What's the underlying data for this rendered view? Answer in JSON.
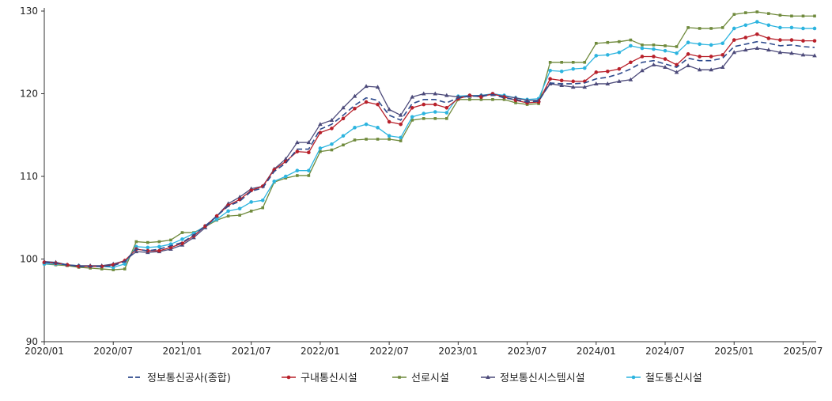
{
  "chart_data": {
    "type": "line",
    "title": "",
    "xlabel": "",
    "ylabel": "",
    "ylim": [
      90,
      130
    ],
    "y_ticks": [
      "90",
      "100",
      "110",
      "120",
      "130"
    ],
    "x_ticks": [
      "2020/01",
      "2020/07",
      "2021/01",
      "2021/07",
      "2022/01",
      "2022/07",
      "2023/01",
      "2023/07",
      "2024/01",
      "2024/07",
      "2025/01",
      "2025/07"
    ],
    "grid": false,
    "legend_position": "bottom",
    "x": [
      "2020/01",
      "2020/02",
      "2020/03",
      "2020/04",
      "2020/05",
      "2020/06",
      "2020/07",
      "2020/08",
      "2020/09",
      "2020/10",
      "2020/11",
      "2020/12",
      "2021/01",
      "2021/02",
      "2021/03",
      "2021/04",
      "2021/05",
      "2021/06",
      "2021/07",
      "2021/08",
      "2021/09",
      "2021/10",
      "2021/11",
      "2021/12",
      "2022/01",
      "2022/02",
      "2022/03",
      "2022/04",
      "2022/05",
      "2022/06",
      "2022/07",
      "2022/08",
      "2022/09",
      "2022/10",
      "2022/11",
      "2022/12",
      "2023/01",
      "2023/02",
      "2023/03",
      "2023/04",
      "2023/05",
      "2023/06",
      "2023/07",
      "2023/08",
      "2023/09",
      "2023/10",
      "2023/11",
      "2023/12",
      "2024/01",
      "2024/02",
      "2024/03",
      "2024/04",
      "2024/05",
      "2024/06",
      "2024/07",
      "2024/08",
      "2024/09",
      "2024/10",
      "2024/11",
      "2024/12",
      "2025/01",
      "2025/02",
      "2025/03",
      "2025/04",
      "2025/05",
      "2025/06",
      "2025/07",
      "2025/08"
    ],
    "series": [
      {
        "name": "정보통신공사(종합)",
        "color": "#2e4a8c",
        "style": "dashed",
        "marker": "none",
        "values": [
          99.6,
          99.5,
          99.3,
          99.1,
          99.1,
          99.1,
          99.2,
          99.7,
          101.2,
          101.0,
          101.2,
          101.6,
          102.0,
          102.9,
          104.0,
          105.2,
          106.4,
          107.0,
          108.2,
          108.6,
          110.6,
          111.6,
          113.3,
          113.3,
          115.7,
          116.3,
          117.4,
          118.6,
          119.5,
          119.2,
          117.4,
          116.8,
          118.8,
          119.3,
          119.3,
          118.9,
          119.5,
          119.7,
          119.7,
          119.9,
          119.5,
          119.3,
          119.0,
          119.1,
          121.3,
          121.2,
          121.2,
          121.3,
          121.8,
          122.0,
          122.4,
          123.0,
          123.8,
          124.0,
          123.6,
          123.2,
          124.3,
          124.0,
          124.0,
          124.3,
          125.7,
          126.0,
          126.3,
          126.1,
          125.8,
          125.9,
          125.7,
          125.6
        ]
      },
      {
        "name": "구내통신시설",
        "color": "#b8202a",
        "style": "solid",
        "marker": "circle",
        "values": [
          99.6,
          99.5,
          99.3,
          99.1,
          99.1,
          99.1,
          99.3,
          99.8,
          101.2,
          101.0,
          101.0,
          101.4,
          101.9,
          102.8,
          104.0,
          105.2,
          106.5,
          107.2,
          108.3,
          108.8,
          110.8,
          111.8,
          113.0,
          112.9,
          115.3,
          115.8,
          117.0,
          118.2,
          119.0,
          118.7,
          116.6,
          116.3,
          118.3,
          118.7,
          118.7,
          118.3,
          119.4,
          119.8,
          119.6,
          120.0,
          119.6,
          119.2,
          118.9,
          119.0,
          121.8,
          121.6,
          121.5,
          121.5,
          122.6,
          122.7,
          123.0,
          123.8,
          124.5,
          124.5,
          124.2,
          123.5,
          124.8,
          124.5,
          124.5,
          124.7,
          126.5,
          126.8,
          127.2,
          126.7,
          126.5,
          126.5,
          126.4,
          126.4
        ]
      },
      {
        "name": "선로시설",
        "color": "#6f8a3c",
        "style": "solid",
        "marker": "square",
        "values": [
          99.4,
          99.3,
          99.2,
          99.0,
          98.9,
          98.8,
          98.7,
          98.8,
          102.1,
          102.0,
          102.1,
          102.3,
          103.2,
          103.2,
          103.9,
          104.7,
          105.2,
          105.3,
          105.8,
          106.2,
          109.3,
          109.8,
          110.1,
          110.1,
          113.0,
          113.2,
          113.8,
          114.4,
          114.5,
          114.5,
          114.5,
          114.3,
          116.8,
          117.0,
          117.0,
          117.0,
          119.3,
          119.3,
          119.3,
          119.3,
          119.3,
          118.9,
          118.7,
          118.8,
          123.8,
          123.8,
          123.8,
          123.8,
          126.1,
          126.2,
          126.3,
          126.5,
          125.9,
          125.9,
          125.8,
          125.7,
          128.0,
          127.9,
          127.9,
          128.0,
          129.6,
          129.8,
          129.9,
          129.7,
          129.5,
          129.4,
          129.4,
          129.4
        ]
      },
      {
        "name": "정보통신시스템시설",
        "color": "#4c4a7a",
        "style": "solid",
        "marker": "triangle",
        "values": [
          99.7,
          99.6,
          99.3,
          99.2,
          99.2,
          99.2,
          99.4,
          99.8,
          100.9,
          100.8,
          100.9,
          101.2,
          101.7,
          102.6,
          103.8,
          105.2,
          106.7,
          107.5,
          108.5,
          108.8,
          110.9,
          112.1,
          114.1,
          114.1,
          116.3,
          116.8,
          118.3,
          119.7,
          120.9,
          120.8,
          118.1,
          117.4,
          119.6,
          120.0,
          120.0,
          119.8,
          119.6,
          119.7,
          119.8,
          119.9,
          119.7,
          119.5,
          119.2,
          119.2,
          121.2,
          121.0,
          120.8,
          120.8,
          121.2,
          121.2,
          121.5,
          121.7,
          122.8,
          123.5,
          123.2,
          122.6,
          123.4,
          122.9,
          122.9,
          123.2,
          125.0,
          125.3,
          125.5,
          125.3,
          125.0,
          124.9,
          124.7,
          124.6
        ]
      },
      {
        "name": "철도통신시설",
        "color": "#2cb4df",
        "style": "solid",
        "marker": "circle",
        "values": [
          99.4,
          99.4,
          99.3,
          99.2,
          99.1,
          99.1,
          99.0,
          99.4,
          101.5,
          101.4,
          101.5,
          101.8,
          102.4,
          103.1,
          104.0,
          104.8,
          105.8,
          106.1,
          106.9,
          107.1,
          109.4,
          110.0,
          110.7,
          110.7,
          113.4,
          113.9,
          114.9,
          115.9,
          116.3,
          115.9,
          114.9,
          114.7,
          117.2,
          117.6,
          117.8,
          117.7,
          119.7,
          119.8,
          119.8,
          120.0,
          119.8,
          119.5,
          119.3,
          119.4,
          122.8,
          122.7,
          123.0,
          123.1,
          124.6,
          124.7,
          125.0,
          125.8,
          125.5,
          125.4,
          125.2,
          124.9,
          126.2,
          126.0,
          125.9,
          126.1,
          127.9,
          128.3,
          128.7,
          128.3,
          128.0,
          128.0,
          127.9,
          127.9
        ]
      }
    ]
  }
}
